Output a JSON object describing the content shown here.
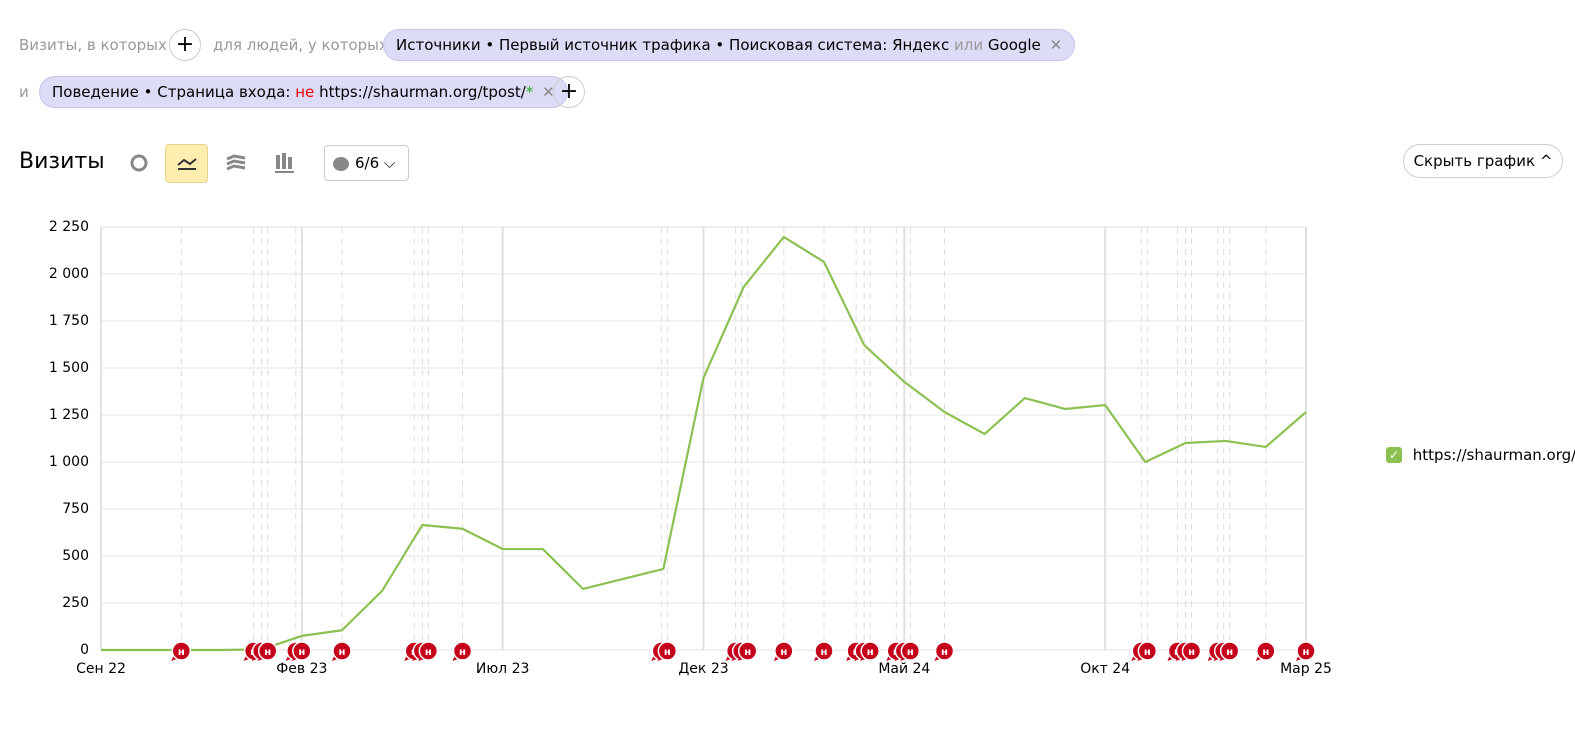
{
  "filters": {
    "visits_label": "Визиты, в которых",
    "people_label": "для людей, у которых",
    "chip1": {
      "text": "Источники • Первый источник трафика • Поисковая система: Яндекс",
      "or": "или",
      "value": "Google"
    },
    "and": "и",
    "chip2": {
      "text": "Поведение • Страница входа:",
      "not": "не",
      "value": "https://shaurman.org/tpost/",
      "wildcard": "*"
    }
  },
  "toolbar": {
    "title": "Визиты",
    "annotations_counter": "6/6",
    "hide_chart": "Скрыть график"
  },
  "chart_data": {
    "type": "line",
    "categories": [
      "Сен 22",
      null,
      null,
      null,
      null,
      "Фев 23",
      null,
      null,
      null,
      null,
      "Июл 23",
      null,
      null,
      null,
      null,
      "Дек 23",
      null,
      null,
      null,
      null,
      "Май 24",
      null,
      null,
      null,
      null,
      "Окт 24",
      null,
      null,
      null,
      null,
      "Мар 25"
    ],
    "series": [
      {
        "name": "https://shaurman.org/",
        "color": "#8cc152",
        "values": [
          0,
          0,
          0,
          0,
          3,
          75,
          105,
          315,
          665,
          645,
          537,
          537,
          325,
          378,
          431,
          1447,
          1931,
          2197,
          2064,
          1622,
          1426,
          1266,
          1149,
          1340,
          1282,
          1303,
          1000,
          1101,
          1112,
          1080,
          1266
        ]
      }
    ],
    "ylim": [
      0,
      2250
    ],
    "yticks": [
      0,
      250,
      500,
      750,
      {
        "value": 1000,
        "label": "1 000"
      },
      {
        "value": 1250,
        "label": "1 250"
      },
      {
        "value": 1500,
        "label": "1 500"
      },
      {
        "value": 1750,
        "label": "1 750"
      },
      {
        "value": 2000,
        "label": "2 000"
      },
      {
        "value": 2250,
        "label": "2 250"
      }
    ],
    "grid": true,
    "annotations": {
      "label": "н",
      "positions": [
        2,
        3.8,
        4,
        4.15,
        4.85,
        5,
        6,
        7.8,
        8,
        8.15,
        9,
        13.95,
        14.1,
        15.8,
        15.95,
        16.1,
        17,
        18,
        18.8,
        19,
        19.15,
        19.8,
        20,
        20.15,
        21,
        25.9,
        26.05,
        26.8,
        27,
        27.15,
        27.8,
        27.95,
        28.1,
        29,
        30
      ]
    }
  }
}
